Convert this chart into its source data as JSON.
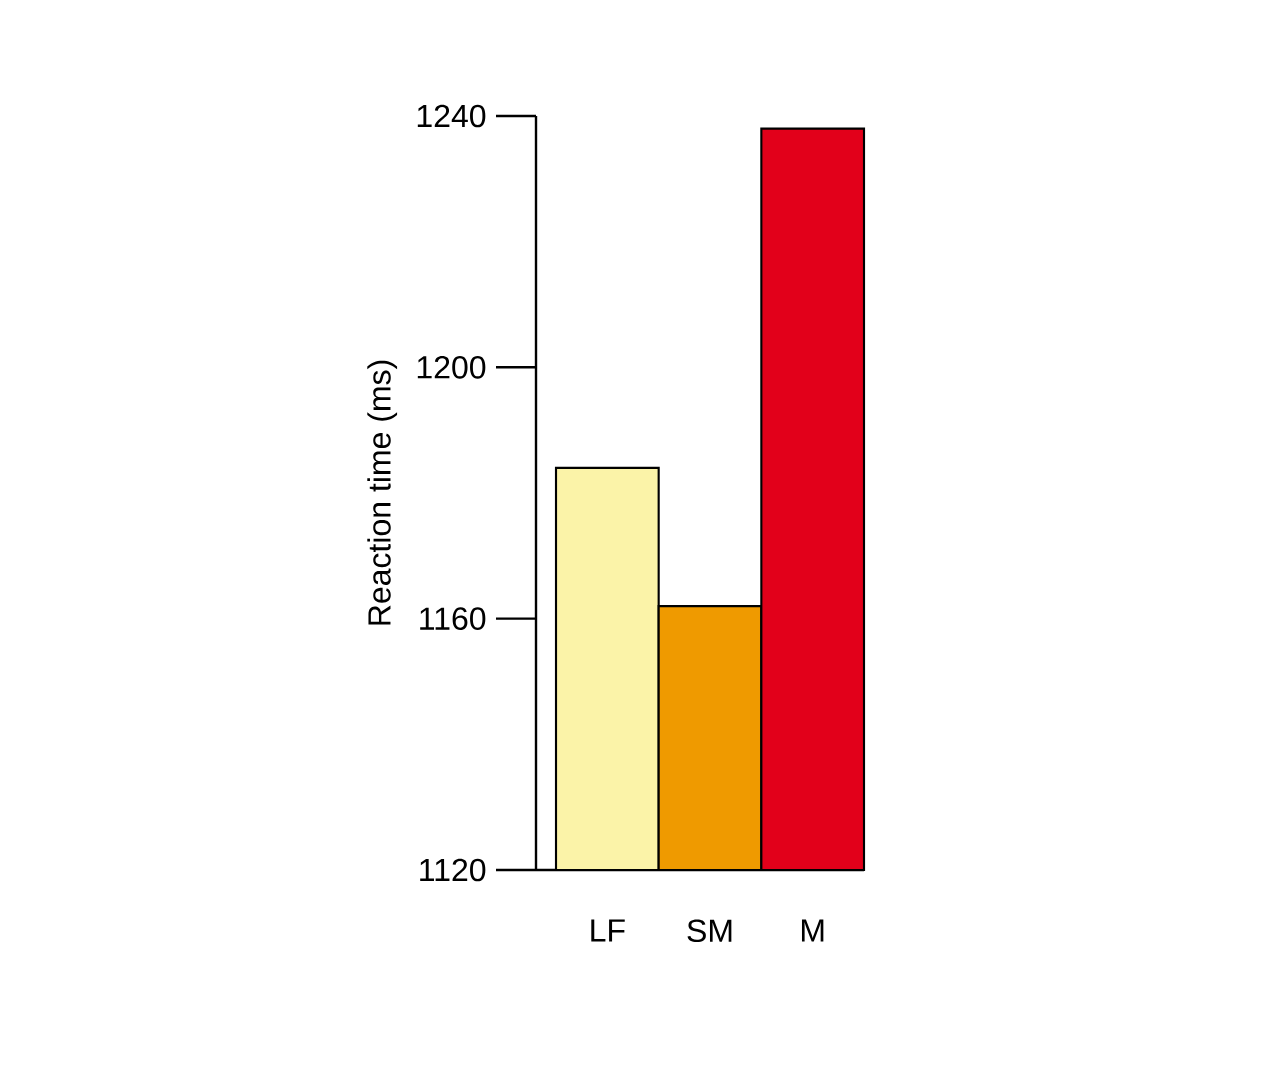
{
  "chart_data": {
    "type": "bar",
    "ylabel": "Reaction time (ms)",
    "categories": [
      "LF",
      "SM",
      "M"
    ],
    "values": [
      1184,
      1162,
      1238
    ],
    "colors": [
      "#fbf3a8",
      "#ef9a00",
      "#e2001a"
    ],
    "ylim": [
      1120,
      1240
    ],
    "yticks": [
      1120,
      1160,
      1200,
      1240
    ],
    "grid": false
  }
}
